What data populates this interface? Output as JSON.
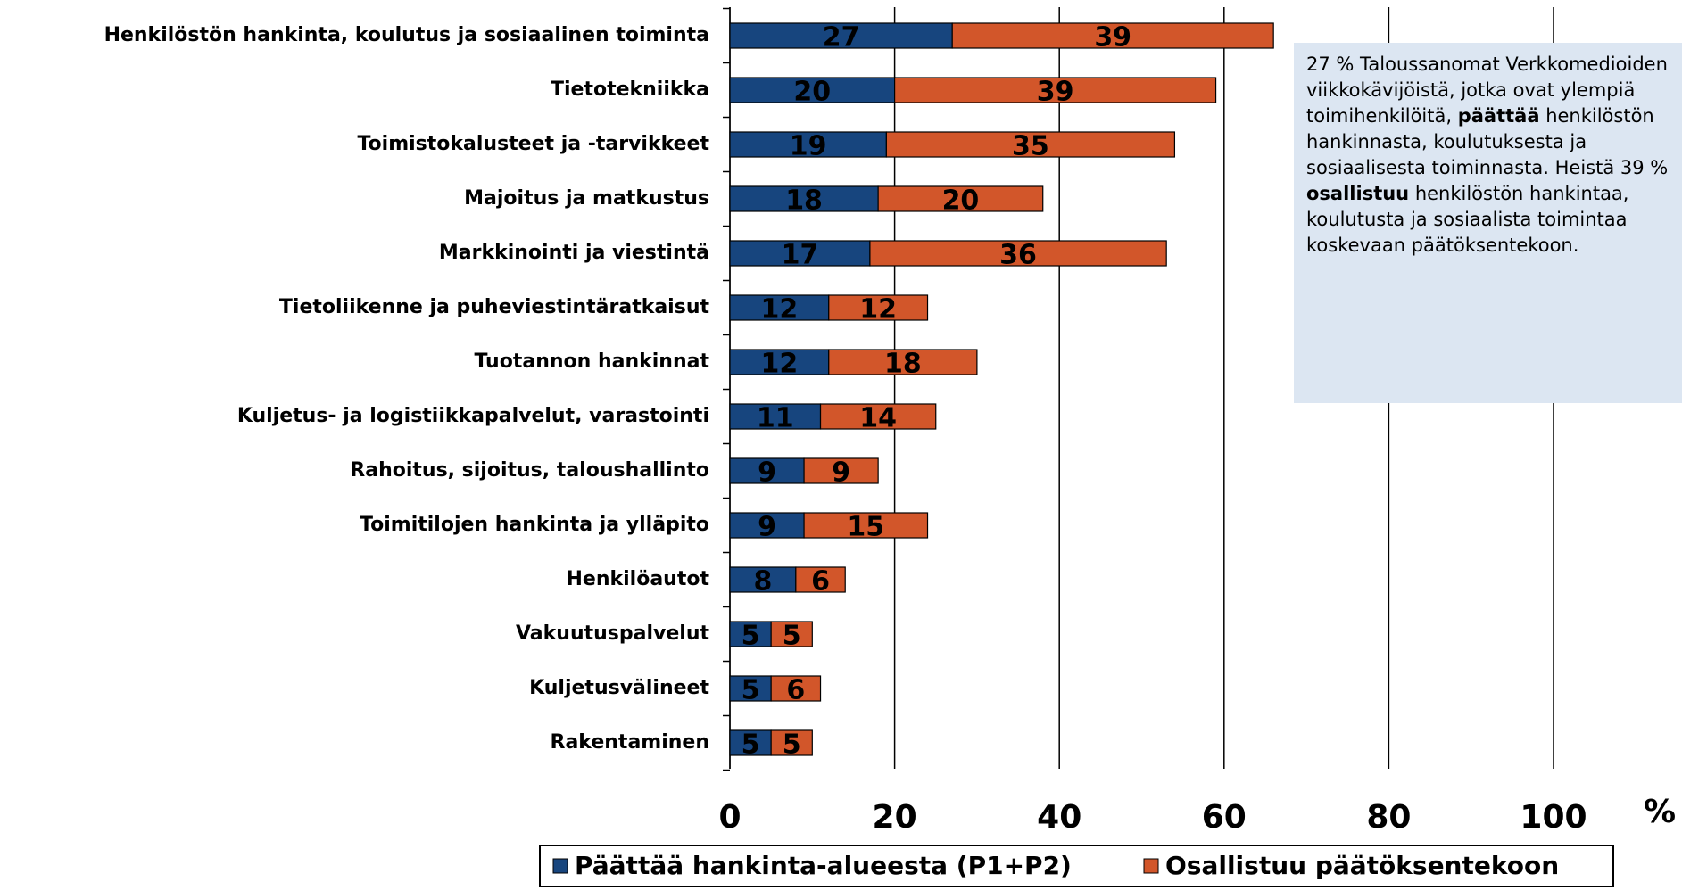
{
  "chart_data": {
    "type": "stacked_barh",
    "categories": [
      "Henkilöstön hankinta, koulutus ja sosiaalinen toiminta",
      "Tietotekniikka",
      "Toimistokalusteet ja -tarvikkeet",
      "Majoitus ja matkustus",
      "Markkinointi ja viestintä",
      "Tietoliikenne ja puheviestintäratkaisut",
      "Tuotannon hankinnat",
      "Kuljetus- ja logistiikkapalvelut, varastointi",
      "Rahoitus, sijoitus, taloushallinto",
      "Toimitilojen hankinta ja ylläpito",
      "Henkilöautot",
      "Vakuutuspalvelut",
      "Kuljetusvälineet",
      "Rakentaminen"
    ],
    "series": [
      {
        "name": "Päättää hankinta-alueesta (P1+P2)",
        "color": "#17457e",
        "values": [
          27,
          20,
          19,
          18,
          17,
          12,
          12,
          11,
          9,
          9,
          8,
          5,
          5,
          5
        ]
      },
      {
        "name": "Osallistuu päätöksentekoon",
        "color": "#d2562a",
        "values": [
          39,
          39,
          35,
          20,
          36,
          12,
          18,
          14,
          9,
          15,
          6,
          5,
          6,
          5
        ]
      }
    ],
    "xlim": [
      0,
      100
    ],
    "xticks": [
      0,
      20,
      40,
      60,
      80,
      100
    ],
    "xlabel": "%",
    "grid": true,
    "legend": "bottom",
    "annotation": [
      {
        "text": "27 % Taloussanomat Verkkomedioiden viikkokävijöistä, jotka ovat ylempiä toimihenkilöitä, ",
        "bold": false
      },
      {
        "text": "päättää",
        "bold": true
      },
      {
        "text": " henkilöstön hankinnasta, koulutuksesta ja sosiaalisesta toiminnasta. Heistä 39 % ",
        "bold": false
      },
      {
        "text": "osallistuu",
        "bold": true
      },
      {
        "text": " henkilöstön hankintaa, koulutusta ja sosiaalista toimintaa koskevaan päätöksentekoon.",
        "bold": false
      }
    ]
  }
}
